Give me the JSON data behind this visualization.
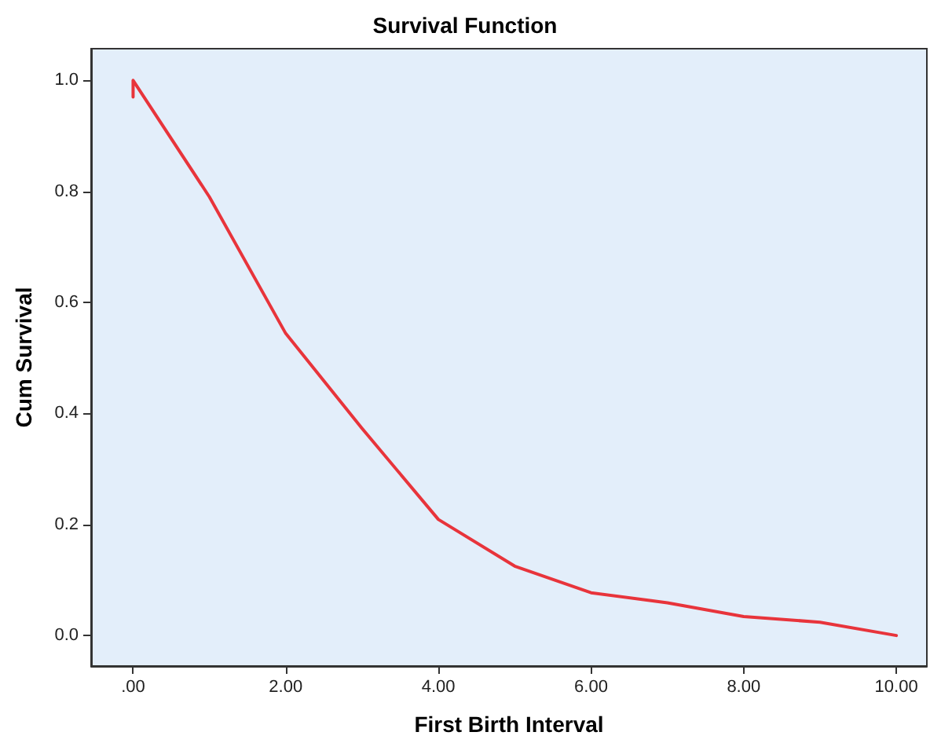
{
  "chart_data": {
    "type": "line",
    "title": "Survival Function",
    "xlabel": "First Birth Interval",
    "ylabel": "Cum Survival",
    "x": [
      0,
      0,
      1,
      2,
      3,
      4,
      5,
      6,
      7,
      8,
      9,
      10
    ],
    "series": [
      {
        "color": "#e8343b",
        "values": [
          0.97,
          1.0,
          0.79,
          0.544,
          0.373,
          0.209,
          0.125,
          0.077,
          0.059,
          0.034,
          0.024,
          0.0
        ]
      }
    ],
    "xlim": [
      -0.55,
      10.4
    ],
    "ylim": [
      -0.055,
      1.057
    ],
    "xticks": [
      {
        "value": 0,
        "label": ".00"
      },
      {
        "value": 2,
        "label": "2.00"
      },
      {
        "value": 4,
        "label": "4.00"
      },
      {
        "value": 6,
        "label": "6.00"
      },
      {
        "value": 8,
        "label": "8.00"
      },
      {
        "value": 10,
        "label": "10.00"
      }
    ],
    "yticks": [
      {
        "value": 0,
        "label": "0.0"
      },
      {
        "value": 0.2,
        "label": "0.2"
      },
      {
        "value": 0.4,
        "label": "0.4"
      },
      {
        "value": 0.6,
        "label": "0.6"
      },
      {
        "value": 0.8,
        "label": "0.8"
      },
      {
        "value": 1,
        "label": "1.0"
      }
    ],
    "grid": false,
    "marker": "none",
    "line_style": "solid"
  }
}
